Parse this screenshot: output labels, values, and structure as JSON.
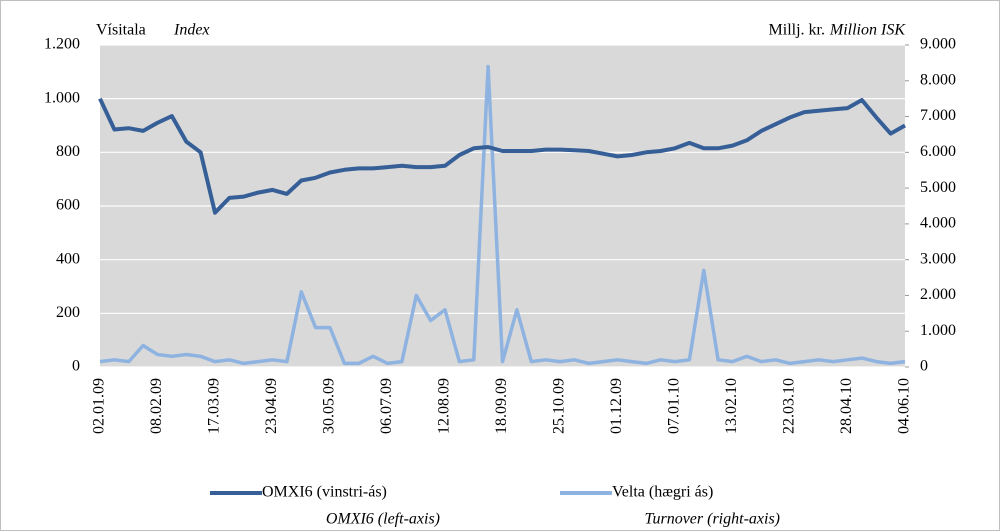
{
  "chart_data": {
    "type": "line",
    "y_title": "Vísitala",
    "y_title_en": "Index",
    "y2_title": "Millj. kr.",
    "y2_title_en": "Million ISK",
    "categories": [
      "02.01.09",
      null,
      null,
      null,
      "08.02.09",
      null,
      null,
      null,
      "17.03.09",
      null,
      null,
      null,
      "23.04.09",
      null,
      null,
      null,
      "30.05.09",
      null,
      null,
      null,
      "06.07.09",
      null,
      null,
      null,
      "12.08.09",
      null,
      null,
      null,
      "18.09.09",
      null,
      null,
      null,
      "25.10.09",
      null,
      null,
      null,
      "01.12.09",
      null,
      null,
      null,
      "07.01.10",
      null,
      null,
      null,
      "13.02.10",
      null,
      null,
      null,
      "22.03.10",
      null,
      null,
      null,
      "28.04.10",
      null,
      null,
      null,
      "04.06.10"
    ],
    "series": [
      {
        "name": "OMXI6 (vinstri-ás)",
        "name_en": "OMXI6 (left-axis)",
        "color": "#365f97",
        "axis": "y",
        "values": [
          1000,
          885,
          890,
          880,
          910,
          935,
          840,
          800,
          575,
          630,
          635,
          650,
          660,
          645,
          695,
          705,
          725,
          735,
          740,
          740,
          745,
          750,
          745,
          745,
          750,
          790,
          815,
          820,
          805,
          805,
          805,
          810,
          810,
          808,
          805,
          795,
          785,
          790,
          800,
          805,
          815,
          835,
          815,
          815,
          825,
          845,
          880,
          905,
          930,
          950,
          955,
          960,
          965,
          995,
          930,
          870,
          900
        ]
      },
      {
        "name": "Velta (hægri ás)",
        "name_en": "Turnover (right-axis)",
        "color": "#8fb3e0",
        "axis": "y2",
        "values": [
          150,
          200,
          150,
          600,
          350,
          300,
          350,
          300,
          150,
          200,
          100,
          150,
          200,
          150,
          2100,
          1100,
          1100,
          100,
          100,
          300,
          100,
          150,
          2000,
          1300,
          1600,
          150,
          200,
          8400,
          150,
          1600,
          150,
          200,
          150,
          200,
          100,
          150,
          200,
          150,
          100,
          200,
          150,
          200,
          2700,
          200,
          150,
          300,
          150,
          200,
          100,
          150,
          200,
          150,
          200,
          250,
          150,
          100,
          150
        ]
      }
    ],
    "ylim": [
      0,
      1200
    ],
    "yticks": [
      0,
      200,
      400,
      600,
      800,
      {
        "value": 1000,
        "label": "1.000"
      },
      {
        "value": 1200,
        "label": "1.200"
      }
    ],
    "y2lim": [
      0,
      9000
    ],
    "y2ticks": [
      0,
      {
        "value": 1000,
        "label": "1.000"
      },
      {
        "value": 2000,
        "label": "2.000"
      },
      {
        "value": 3000,
        "label": "3.000"
      },
      {
        "value": 4000,
        "label": "4.000"
      },
      {
        "value": 5000,
        "label": "5.000"
      },
      {
        "value": 6000,
        "label": "6.000"
      },
      {
        "value": 7000,
        "label": "7.000"
      },
      {
        "value": 8000,
        "label": "8.000"
      },
      {
        "value": 9000,
        "label": "9.000"
      }
    ],
    "grid": true
  }
}
